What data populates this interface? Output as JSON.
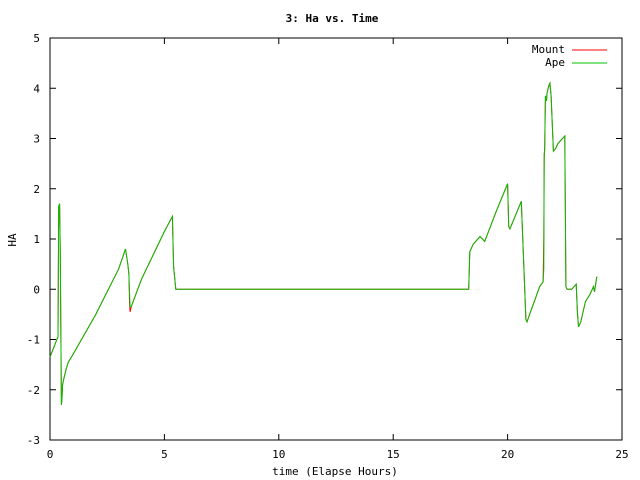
{
  "chart_data": {
    "type": "line",
    "title": "3: Ha vs. Time",
    "xlabel": "time (Elapse Hours)",
    "ylabel": "HA",
    "xlim": [
      0,
      25
    ],
    "ylim": [
      -3,
      5
    ],
    "xticks": [
      0,
      5,
      10,
      15,
      20,
      25
    ],
    "yticks": [
      -3,
      -2,
      -1,
      0,
      1,
      2,
      3,
      4,
      5
    ],
    "grid": false,
    "legend_position": "top-right",
    "series": [
      {
        "name": "Mount",
        "color": "#ff0000",
        "x": [
          0.0,
          0.3,
          0.35,
          0.38,
          0.42,
          0.45,
          0.5,
          0.52,
          0.55,
          0.62,
          0.7,
          0.8,
          1.0,
          2.0,
          3.0,
          3.3,
          3.4,
          3.45,
          3.48,
          3.5,
          3.55,
          4.0,
          5.0,
          5.35,
          5.4,
          5.5,
          10.0,
          15.0,
          18.3,
          18.35,
          18.5,
          18.8,
          19.0,
          19.5,
          20.0,
          20.05,
          20.1,
          20.6,
          20.8,
          20.85,
          21.0,
          21.2,
          21.4,
          21.55,
          21.58,
          21.6,
          21.62,
          21.65,
          21.7,
          21.72,
          21.75,
          21.8,
          21.85,
          21.9,
          22.0,
          22.1,
          22.2,
          22.5,
          22.55,
          22.6,
          22.8,
          23.0,
          23.05,
          23.1,
          23.2,
          23.4,
          23.6,
          23.75,
          23.8,
          23.9
        ],
        "y": [
          -1.35,
          -1.0,
          -0.95,
          1.65,
          1.7,
          0.7,
          -2.3,
          -2.2,
          -1.9,
          -1.75,
          -1.6,
          -1.45,
          -1.3,
          -0.5,
          0.4,
          0.8,
          0.5,
          0.3,
          -0.3,
          -0.45,
          -0.35,
          0.2,
          1.15,
          1.45,
          0.45,
          0.0,
          0.0,
          0.0,
          0.0,
          0.75,
          0.9,
          1.05,
          0.95,
          1.55,
          2.1,
          1.25,
          1.2,
          1.75,
          -0.6,
          -0.65,
          -0.45,
          -0.2,
          0.05,
          0.15,
          1.0,
          2.6,
          2.85,
          3.8,
          3.75,
          3.9,
          3.95,
          4.05,
          4.1,
          3.85,
          2.75,
          2.8,
          2.9,
          3.05,
          0.05,
          0.0,
          0.0,
          0.1,
          -0.45,
          -0.75,
          -0.65,
          -0.25,
          -0.1,
          0.05,
          -0.05,
          0.25
        ]
      },
      {
        "name": "Ape",
        "color": "#00c000",
        "x": [
          0.0,
          0.3,
          0.35,
          0.38,
          0.42,
          0.45,
          0.5,
          0.52,
          0.55,
          0.62,
          0.7,
          0.8,
          1.0,
          2.0,
          3.0,
          3.3,
          3.4,
          3.45,
          3.48,
          3.5,
          3.55,
          4.0,
          5.0,
          5.35,
          5.4,
          5.5,
          10.0,
          15.0,
          18.3,
          18.35,
          18.5,
          18.8,
          19.0,
          19.5,
          20.0,
          20.05,
          20.1,
          20.6,
          20.8,
          20.85,
          21.0,
          21.2,
          21.4,
          21.55,
          21.58,
          21.6,
          21.62,
          21.65,
          21.7,
          21.72,
          21.75,
          21.8,
          21.85,
          21.9,
          22.0,
          22.1,
          22.2,
          22.5,
          22.55,
          22.6,
          22.8,
          23.0,
          23.05,
          23.1,
          23.2,
          23.4,
          23.6,
          23.75,
          23.8,
          23.9
        ],
        "y": [
          -1.35,
          -1.0,
          -0.95,
          1.65,
          1.7,
          0.7,
          -2.3,
          -2.2,
          -1.9,
          -1.75,
          -1.6,
          -1.45,
          -1.3,
          -0.5,
          0.4,
          0.8,
          0.5,
          0.3,
          -0.1,
          -0.35,
          -0.35,
          0.2,
          1.15,
          1.45,
          0.45,
          0.0,
          0.0,
          0.0,
          0.0,
          0.75,
          0.9,
          1.05,
          0.95,
          1.55,
          2.1,
          1.25,
          1.2,
          1.75,
          -0.6,
          -0.65,
          -0.45,
          -0.2,
          0.05,
          0.15,
          0.4,
          2.7,
          2.75,
          3.85,
          3.75,
          3.9,
          3.95,
          4.05,
          4.1,
          3.85,
          2.75,
          2.8,
          2.9,
          3.05,
          0.05,
          0.0,
          0.0,
          0.1,
          -0.45,
          -0.75,
          -0.65,
          -0.25,
          -0.1,
          0.05,
          -0.05,
          0.25
        ]
      }
    ]
  }
}
